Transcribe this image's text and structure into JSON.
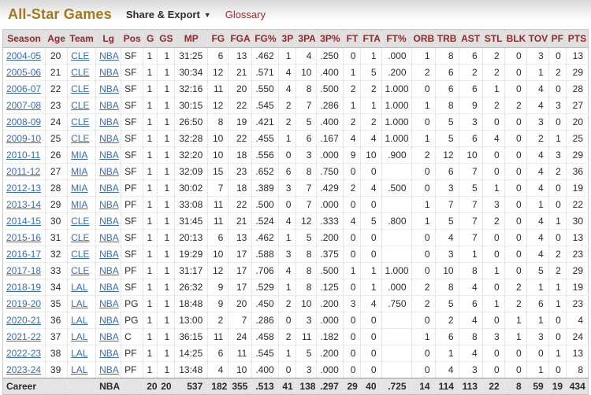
{
  "page": {
    "title": "All-Star Games",
    "share_export_label": "Share & Export",
    "caret": "▼",
    "glossary_label": "Glossary"
  },
  "colors": {
    "title_gold": "#a6781e",
    "header_red": "#92282a",
    "link_blue": "#3b6bb5",
    "glossary_red": "#a4282a"
  },
  "table": {
    "columns": [
      "Season",
      "Age",
      "Team",
      "Lg",
      "Pos",
      "G",
      "GS",
      "MP",
      "FG",
      "FGA",
      "FG%",
      "3P",
      "3PA",
      "3P%",
      "FT",
      "FTA",
      "FT%",
      "ORB",
      "TRB",
      "AST",
      "STL",
      "BLK",
      "TOV",
      "PF",
      "PTS"
    ],
    "rows": [
      [
        "2004-05",
        "20",
        "CLE",
        "NBA",
        "SF",
        "1",
        "1",
        "31:25",
        "6",
        "13",
        ".462",
        "1",
        "4",
        ".250",
        "0",
        "1",
        ".000",
        "1",
        "8",
        "6",
        "2",
        "0",
        "3",
        "0",
        "13"
      ],
      [
        "2005-06",
        "21",
        "CLE",
        "NBA",
        "SF",
        "1",
        "1",
        "30:34",
        "12",
        "21",
        ".571",
        "4",
        "10",
        ".400",
        "1",
        "5",
        ".200",
        "2",
        "6",
        "2",
        "2",
        "0",
        "1",
        "2",
        "29"
      ],
      [
        "2006-07",
        "22",
        "CLE",
        "NBA",
        "SF",
        "1",
        "1",
        "32:16",
        "11",
        "20",
        ".550",
        "4",
        "8",
        ".500",
        "2",
        "2",
        "1.000",
        "0",
        "6",
        "6",
        "1",
        "0",
        "4",
        "0",
        "28"
      ],
      [
        "2007-08",
        "23",
        "CLE",
        "NBA",
        "SF",
        "1",
        "1",
        "30:15",
        "12",
        "22",
        ".545",
        "2",
        "7",
        ".286",
        "1",
        "1",
        "1.000",
        "1",
        "8",
        "9",
        "2",
        "2",
        "4",
        "3",
        "27"
      ],
      [
        "2008-09",
        "24",
        "CLE",
        "NBA",
        "SF",
        "1",
        "1",
        "26:50",
        "8",
        "19",
        ".421",
        "2",
        "5",
        ".400",
        "2",
        "2",
        "1.000",
        "0",
        "5",
        "3",
        "0",
        "0",
        "3",
        "0",
        "20"
      ],
      [
        "2009-10",
        "25",
        "CLE",
        "NBA",
        "SF",
        "1",
        "1",
        "32:28",
        "10",
        "22",
        ".455",
        "1",
        "6",
        ".167",
        "4",
        "4",
        "1.000",
        "1",
        "5",
        "6",
        "4",
        "0",
        "2",
        "1",
        "25"
      ],
      [
        "2010-11",
        "26",
        "MIA",
        "NBA",
        "SF",
        "1",
        "1",
        "32:20",
        "10",
        "18",
        ".556",
        "0",
        "3",
        ".000",
        "9",
        "10",
        ".900",
        "2",
        "12",
        "10",
        "0",
        "0",
        "4",
        "3",
        "29"
      ],
      [
        "2011-12",
        "27",
        "MIA",
        "NBA",
        "SF",
        "1",
        "1",
        "32:09",
        "15",
        "23",
        ".652",
        "6",
        "8",
        ".750",
        "0",
        "0",
        "",
        "0",
        "6",
        "7",
        "0",
        "0",
        "4",
        "2",
        "36"
      ],
      [
        "2012-13",
        "28",
        "MIA",
        "NBA",
        "PF",
        "1",
        "1",
        "30:02",
        "7",
        "18",
        ".389",
        "3",
        "7",
        ".429",
        "2",
        "4",
        ".500",
        "0",
        "3",
        "5",
        "1",
        "0",
        "4",
        "0",
        "19"
      ],
      [
        "2013-14",
        "29",
        "MIA",
        "NBA",
        "PF",
        "1",
        "1",
        "33:08",
        "11",
        "22",
        ".500",
        "0",
        "7",
        ".000",
        "0",
        "0",
        "",
        "1",
        "7",
        "7",
        "3",
        "0",
        "1",
        "0",
        "22"
      ],
      [
        "2014-15",
        "30",
        "CLE",
        "NBA",
        "SF",
        "1",
        "1",
        "31:45",
        "11",
        "21",
        ".524",
        "4",
        "12",
        ".333",
        "4",
        "5",
        ".800",
        "1",
        "5",
        "7",
        "2",
        "0",
        "4",
        "1",
        "30"
      ],
      [
        "2015-16",
        "31",
        "CLE",
        "NBA",
        "SF",
        "1",
        "1",
        "20:13",
        "6",
        "13",
        ".462",
        "1",
        "5",
        ".200",
        "0",
        "0",
        "",
        "0",
        "4",
        "7",
        "0",
        "0",
        "4",
        "0",
        "13"
      ],
      [
        "2016-17",
        "32",
        "CLE",
        "NBA",
        "SF",
        "1",
        "1",
        "19:29",
        "10",
        "17",
        ".588",
        "3",
        "8",
        ".375",
        "0",
        "0",
        "",
        "0",
        "3",
        "1",
        "0",
        "0",
        "4",
        "2",
        "23"
      ],
      [
        "2017-18",
        "33",
        "CLE",
        "NBA",
        "PF",
        "1",
        "1",
        "31:17",
        "12",
        "17",
        ".706",
        "4",
        "8",
        ".500",
        "1",
        "1",
        "1.000",
        "0",
        "10",
        "8",
        "1",
        "0",
        "5",
        "2",
        "29"
      ],
      [
        "2018-19",
        "34",
        "LAL",
        "NBA",
        "SF",
        "1",
        "1",
        "26:32",
        "9",
        "17",
        ".529",
        "1",
        "8",
        ".125",
        "0",
        "1",
        ".000",
        "2",
        "8",
        "4",
        "0",
        "2",
        "1",
        "1",
        "19"
      ],
      [
        "2019-20",
        "35",
        "LAL",
        "NBA",
        "PG",
        "1",
        "1",
        "18:48",
        "9",
        "20",
        ".450",
        "2",
        "10",
        ".200",
        "3",
        "4",
        ".750",
        "2",
        "5",
        "6",
        "1",
        "2",
        "6",
        "1",
        "23"
      ],
      [
        "2020-21",
        "36",
        "LAL",
        "NBA",
        "PG",
        "1",
        "1",
        "13:00",
        "2",
        "7",
        ".286",
        "0",
        "3",
        ".000",
        "0",
        "0",
        "",
        "0",
        "2",
        "4",
        "0",
        "1",
        "1",
        "0",
        "4"
      ],
      [
        "2021-22",
        "37",
        "LAL",
        "NBA",
        "C",
        "1",
        "1",
        "36:15",
        "11",
        "24",
        ".458",
        "2",
        "11",
        ".182",
        "0",
        "0",
        "",
        "1",
        "6",
        "8",
        "3",
        "1",
        "3",
        "0",
        "24"
      ],
      [
        "2022-23",
        "38",
        "LAL",
        "NBA",
        "PF",
        "1",
        "1",
        "14:25",
        "6",
        "11",
        ".545",
        "1",
        "5",
        ".200",
        "0",
        "0",
        "",
        "0",
        "1",
        "4",
        "0",
        "0",
        "0",
        "1",
        "13"
      ],
      [
        "2023-24",
        "39",
        "LAL",
        "NBA",
        "PF",
        "1",
        "1",
        "13:48",
        "4",
        "10",
        ".400",
        "0",
        "3",
        ".000",
        "0",
        "0",
        "",
        "0",
        "4",
        "3",
        "0",
        "0",
        "1",
        "0",
        "8"
      ]
    ],
    "career": [
      "Career",
      "",
      "",
      "NBA",
      "",
      "20",
      "20",
      "537",
      "182",
      "355",
      ".513",
      "41",
      "138",
      ".297",
      "29",
      "40",
      ".725",
      "14",
      "114",
      "113",
      "22",
      "8",
      "59",
      "19",
      "434"
    ]
  }
}
